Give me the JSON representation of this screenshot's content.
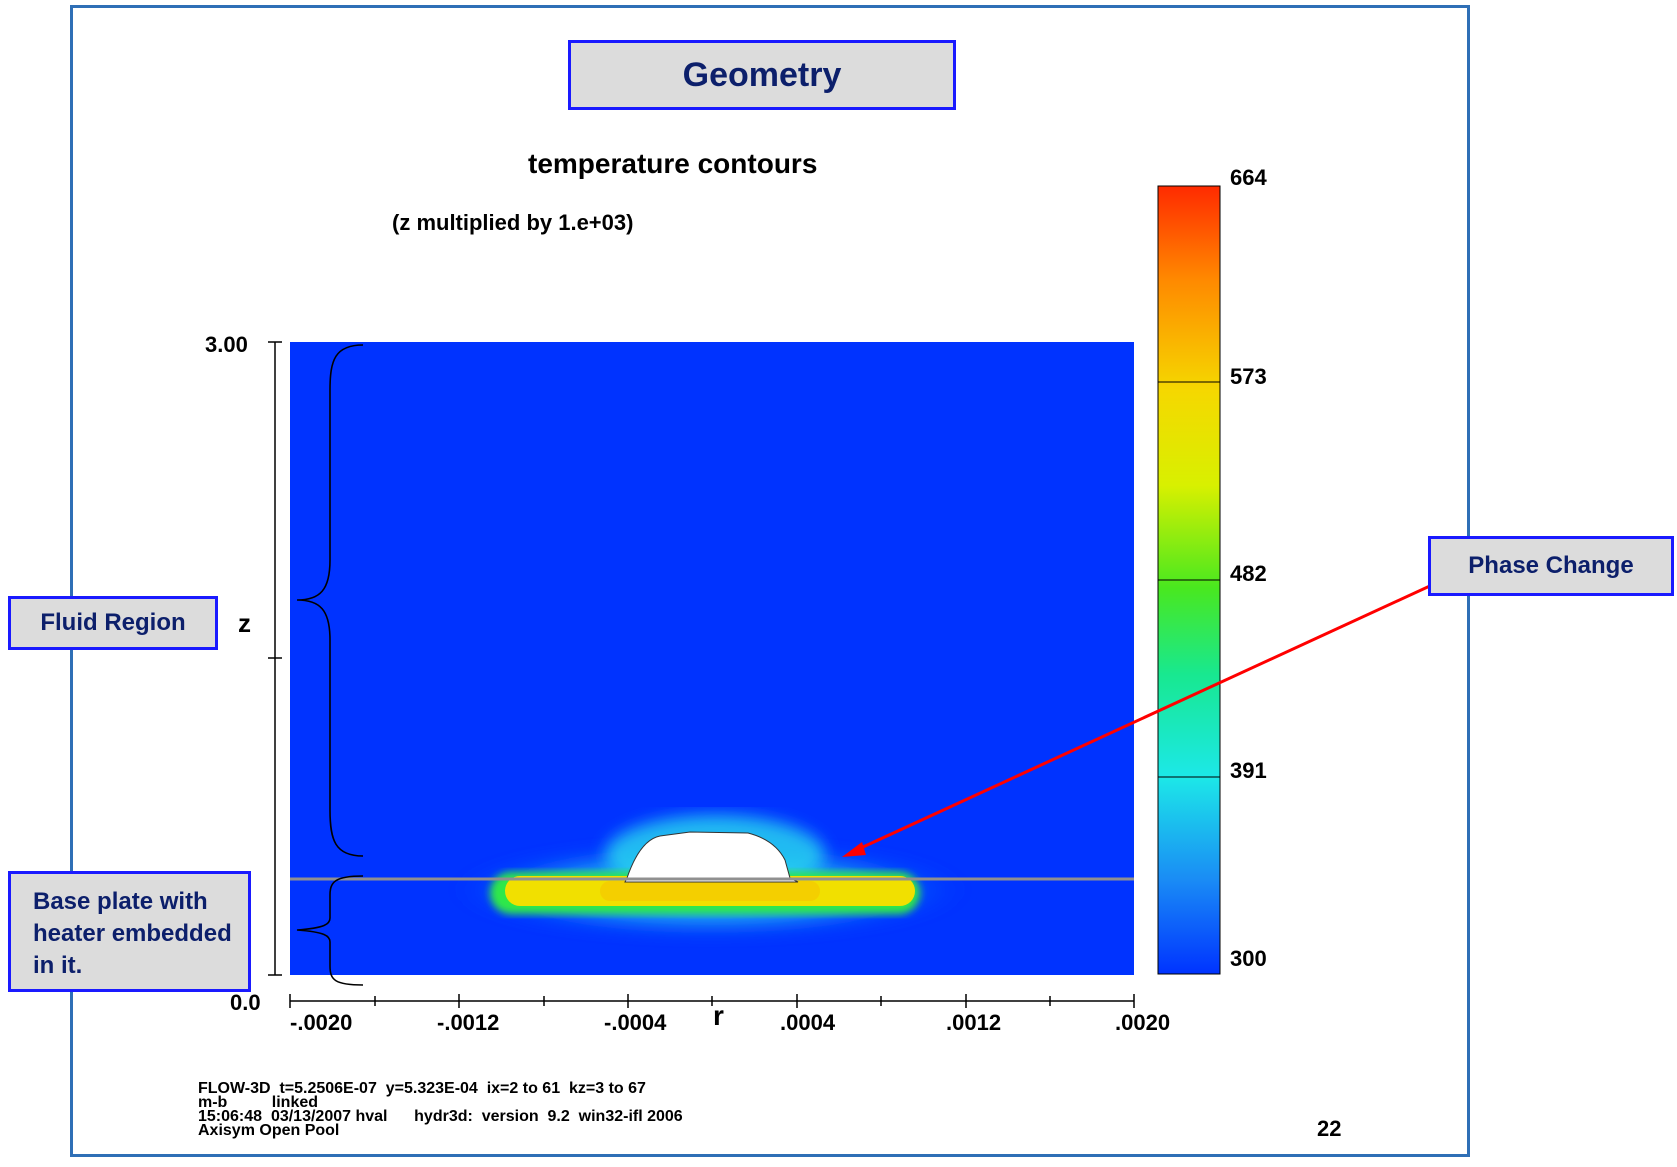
{
  "slide": {
    "title": "Geometry",
    "page_number": "22"
  },
  "plot": {
    "title": "temperature contours",
    "subtitle": "(z multiplied by  1.e+03)",
    "xlabel": "r",
    "ylabel": "z",
    "x_ticks": [
      "-.0020",
      "-.0012",
      "-.0004",
      ".0004",
      ".0012",
      ".0020"
    ],
    "y_ticks": [
      "3.00",
      "0.0"
    ],
    "colorbar_ticks": [
      "664",
      "573",
      "482",
      "391",
      "300"
    ],
    "colors": {
      "background": "#0033ff",
      "hot": "#f5e800",
      "warm": "#2ee84a",
      "cool": "#26d8f0",
      "vapor": "#ffffff"
    },
    "footer_lines": [
      "FLOW-3D  t=5.2506E-07  y=5.323E-04  ix=2 to 61  kz=3 to 67",
      "m-b          linked",
      "15:06:48  03/13/2007 hval      hydr3d:  version  9.2  win32-ifl 2006",
      "Axisym Open Pool"
    ]
  },
  "annotations": {
    "fluid_region": "Fluid Region",
    "phase_change": "Phase Change",
    "base_plate": "Base plate with heater embedded in it."
  }
}
